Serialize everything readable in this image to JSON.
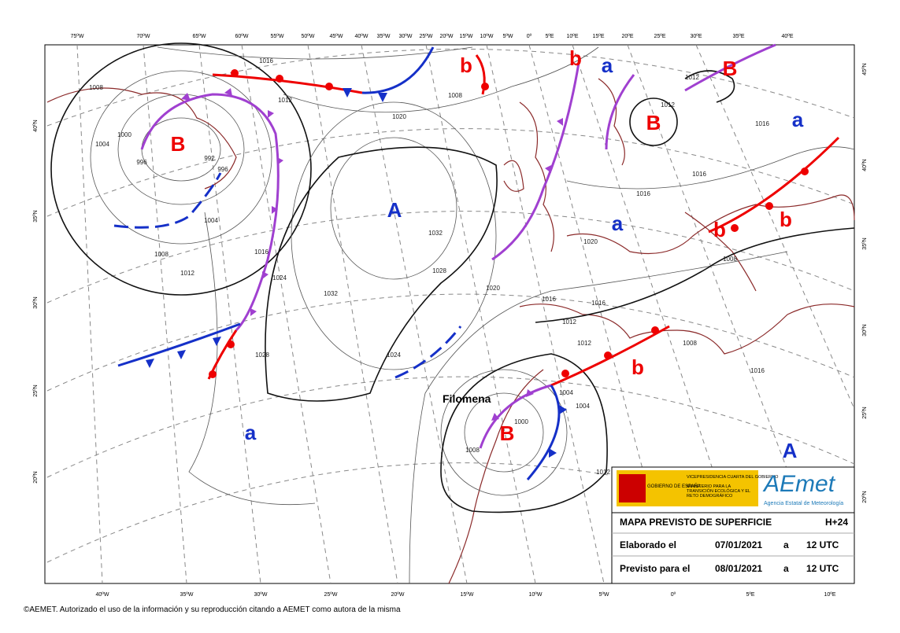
{
  "top_lon": [
    "75ºW",
    "70ºW",
    "65ºW",
    "60ºW",
    "55ºW",
    "50ºW",
    "45ºW",
    "40ºW",
    "35ºW",
    "30ºW",
    "25ºW",
    "20ºW",
    "15ºW",
    "10ºW",
    "5ºW",
    "0º",
    "5ºE",
    "10ºE",
    "15ºE",
    "20ºE",
    "25ºE",
    "30ºE",
    "35ºE",
    "40ºE"
  ],
  "bottom_lon": [
    "40ºW",
    "35ºW",
    "30ºW",
    "25ºW",
    "20ºW",
    "15ºW",
    "10ºW",
    "5ºW",
    "0º",
    "5ºE",
    "10ºE"
  ],
  "left_lat": [
    "40ºN",
    "35ºN",
    "30ºN",
    "25ºN",
    "20ºN"
  ],
  "right_lat": [
    "45ºN",
    "40ºN",
    "35ºN",
    "30ºN",
    "25ºN",
    "20ºN"
  ],
  "systems": [
    "B",
    "B",
    "B",
    "B",
    "b",
    "b",
    "b",
    "b",
    "b",
    "A",
    "A",
    "a",
    "a",
    "a",
    "a"
  ],
  "isobars": [
    "1016",
    "1012",
    "1008",
    "1004",
    "1000",
    "996",
    "992",
    "996",
    "1004",
    "1008",
    "1012",
    "1016",
    "1024",
    "1028",
    "1032",
    "1028",
    "1032",
    "1020",
    "1024",
    "1020",
    "1008",
    "1016",
    "1016",
    "1016",
    "1020",
    "1016",
    "1016",
    "1012",
    "1012",
    "1008",
    "1016",
    "1008",
    "1004",
    "1004",
    "1000",
    "1012",
    "1012",
    "1012",
    "1008"
  ],
  "storm_name": "Filomena",
  "legend": {
    "gov": "GOBIERNO DE ESPAÑA",
    "vice": "VICEPRESIDENCIA CUARTA DEL GOBIERNO",
    "ministry": "MINISTERIO PARA LA TRANSICIÓN ECOLÓGICA Y EL RETO DEMOGRÁFICO",
    "logo": "AEmet",
    "logo_sub": "Agencia Estatal de Meteorología",
    "title": "MAPA PREVISTO DE SUPERFICIE",
    "range": "H+24",
    "rows": [
      {
        "label": "Elaborado el",
        "date": "07/01/2021",
        "sep": "a",
        "time": "12 UTC"
      },
      {
        "label": "Previsto para el",
        "date": "08/01/2021",
        "sep": "a",
        "time": "12 UTC"
      }
    ]
  },
  "footer": "©AEMET. Autorizado el uso de la información y su reproducción citando a AEMET como autora de la misma"
}
